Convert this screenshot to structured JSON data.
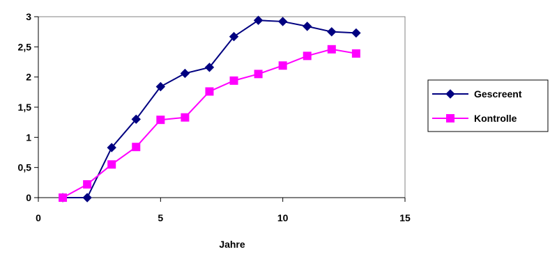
{
  "chart_data": {
    "type": "line",
    "title": "",
    "xlabel": "Jahre",
    "ylabel": "",
    "xlim": [
      0,
      15
    ],
    "ylim": [
      0,
      3
    ],
    "x_ticks": [
      0,
      5,
      10,
      15
    ],
    "x_tick_labels": [
      "0",
      "5",
      "10",
      "15"
    ],
    "y_ticks": [
      0,
      0.5,
      1,
      1.5,
      2,
      2.5,
      3
    ],
    "y_tick_labels": [
      "0",
      "0,5",
      "1",
      "1,5",
      "2",
      "2,5",
      "3"
    ],
    "grid": false,
    "legend_position": "right",
    "series": [
      {
        "name": "Gescreent",
        "color": "#000080",
        "marker": "diamond",
        "x": [
          1,
          2,
          3,
          4,
          5,
          6,
          7,
          8,
          9,
          10,
          11,
          12,
          13
        ],
        "y": [
          0,
          0,
          0.83,
          1.3,
          1.84,
          2.06,
          2.16,
          2.67,
          2.94,
          2.92,
          2.84,
          2.75,
          2.73
        ]
      },
      {
        "name": "Kontrolle",
        "color": "#ff00ff",
        "marker": "square",
        "x": [
          1,
          2,
          3,
          4,
          5,
          6,
          7,
          8,
          9,
          10,
          11,
          12,
          13
        ],
        "y": [
          0,
          0.22,
          0.55,
          0.84,
          1.29,
          1.33,
          1.76,
          1.94,
          2.05,
          2.19,
          2.35,
          2.46,
          2.39
        ]
      }
    ]
  }
}
